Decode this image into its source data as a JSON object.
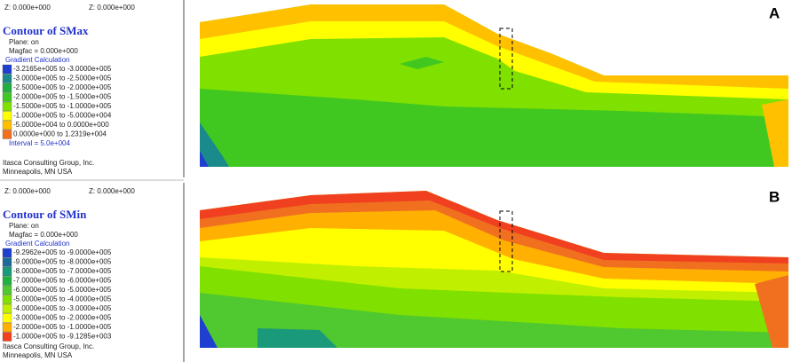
{
  "panels": [
    {
      "label": "A",
      "z_left": "Z: 0.000e+000",
      "z_right": "Z: 0.000e+000",
      "title": "Contour of SMax",
      "plane": "Plane: on",
      "magfac": "Magfac =  0.000e+000",
      "gradient": "Gradient Calculation",
      "legend": [
        {
          "text": "-3.2165e+005 to -3.0000e+005",
          "color": "#1f3fd0"
        },
        {
          "text": "-3.0000e+005 to -2.5000e+005",
          "color": "#1a8a8a"
        },
        {
          "text": "-2.5000e+005 to -2.0000e+005",
          "color": "#20b040"
        },
        {
          "text": "-2.0000e+005 to -1.5000e+005",
          "color": "#40c820"
        },
        {
          "text": "-1.5000e+005 to -1.0000e+005",
          "color": "#80e000"
        },
        {
          "text": "-1.0000e+005 to -5.0000e+004",
          "color": "#ffff00"
        },
        {
          "text": "-5.0000e+004 to  0.0000e+000",
          "color": "#ffc000"
        },
        {
          "text": " 0.0000e+000 to  1.2319e+004",
          "color": "#f07020"
        }
      ],
      "interval": "Interval =  5.0e+004",
      "company": "Itasca Consulting Group, Inc.",
      "city": "Minneapolis, MN  USA"
    },
    {
      "label": "B",
      "z_left": "Z: 0.000e+000",
      "z_right": "Z: 0.000e+000",
      "title": "Contour of SMin",
      "plane": "Plane: on",
      "magfac": "Magfac =  0.000e+000",
      "gradient": "Gradient Calculation",
      "legend": [
        {
          "text": "-9.2962e+005 to -9.0000e+005",
          "color": "#1f3fd0"
        },
        {
          "text": "-9.0000e+005 to -8.0000e+005",
          "color": "#1a6a9a"
        },
        {
          "text": "-8.0000e+005 to -7.0000e+005",
          "color": "#1a9a7a"
        },
        {
          "text": "-7.0000e+005 to -6.0000e+005",
          "color": "#20b040"
        },
        {
          "text": "-6.0000e+005 to -5.0000e+005",
          "color": "#50c830"
        },
        {
          "text": "-5.0000e+005 to -4.0000e+005",
          "color": "#80e000"
        },
        {
          "text": "-4.0000e+005 to -3.0000e+005",
          "color": "#c0f000"
        },
        {
          "text": "-3.0000e+005 to -2.0000e+005",
          "color": "#ffff00"
        },
        {
          "text": "-2.0000e+005 to -1.0000e+005",
          "color": "#ffb000"
        },
        {
          "text": "-1.0000e+005 to -9.1285e+003",
          "color": "#f04020"
        }
      ],
      "company": "Itasca Consulting Group, Inc.",
      "city": "Minneapolis, MN  USA"
    }
  ]
}
